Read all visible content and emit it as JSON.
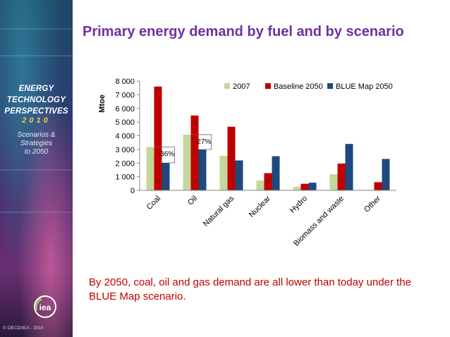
{
  "sidebar": {
    "title_lines": [
      "ENERGY",
      "TECHNOLOGY",
      "PERSPECTIVES"
    ],
    "year": "2010",
    "subtitle_lines": [
      "Scenarios &",
      "Strategies",
      "to 2050"
    ],
    "logo_text": "iea",
    "copyright": "© OECD/IEA - 2010"
  },
  "slide": {
    "title": "Primary energy demand by fuel and by scenario",
    "footer": "By 2050, coal, oil and gas demand are all lower than today under the BLUE Map scenario."
  },
  "chart_data": {
    "type": "bar",
    "title": "",
    "ylabel": "Mtoe",
    "xlabel": "",
    "ylim": [
      0,
      8000
    ],
    "yticks": [
      "0",
      "1 000",
      "2 000",
      "3 000",
      "4 000",
      "5 000",
      "6 000",
      "7 000",
      "8 000"
    ],
    "categories": [
      "Coal",
      "Oil",
      "Natural gas",
      "Nuclear",
      "Hydro",
      "Biomass and waste",
      "Other"
    ],
    "series": [
      {
        "name": "2007",
        "color": "#c4d79b",
        "values": [
          3180,
          4080,
          2530,
          720,
          260,
          1180,
          40
        ]
      },
      {
        "name": "Baseline 2050",
        "color": "#c00000",
        "values": [
          7600,
          5480,
          4660,
          1260,
          480,
          1960,
          600
        ]
      },
      {
        "name": "BLUE Map 2050",
        "color": "#1f497d",
        "values": [
          2020,
          3000,
          2190,
          2500,
          560,
          3400,
          2300
        ]
      }
    ],
    "annotations": [
      "-36%",
      "-27%"
    ],
    "legend_position": "top-right",
    "grid": false
  }
}
